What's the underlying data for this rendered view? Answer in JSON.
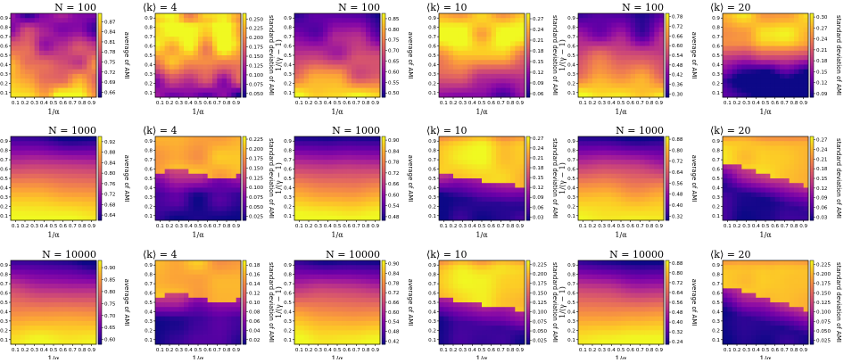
{
  "chart_data": {
    "type": "heatmap",
    "description_grid": "Rows of panels correspond to network size N; columns to mean degree <k>. Each pair shows the average of AMI (left) and the standard deviation of AMI (right) over a 9x9 grid of (1/alpha, 1/(gamma-1)).",
    "axes": {
      "xlabel": "1/α",
      "ylabel": "1/(γ − 1)",
      "xticks": [
        "0.1",
        "0.2",
        "0.3",
        "0.4",
        "0.5",
        "0.6",
        "0.7",
        "0.8",
        "0.9"
      ],
      "yticks": [
        "0.1",
        "0.2",
        "0.3",
        "0.4",
        "0.5",
        "0.6",
        "0.7",
        "0.8",
        "0.9"
      ],
      "xlim": [
        0.05,
        0.95
      ],
      "ylim": [
        0.05,
        0.95
      ],
      "colormap": "plasma"
    },
    "panels": [
      {
        "N_title": "N = 100",
        "k_title": "⟨k⟩ = 4",
        "avg_label": "average of AMI",
        "std_label": "standard deviation of AMI",
        "avg_ticks": [
          "0.87",
          "0.84",
          "0.81",
          "0.78",
          "0.75",
          "0.72",
          "0.69",
          "0.66"
        ],
        "avg_range": [
          0.645,
          0.895
        ],
        "std_ticks": [
          "0.250",
          "0.225",
          "0.200",
          "0.175",
          "0.150",
          "0.125",
          "0.100",
          "0.075",
          "0.050"
        ],
        "std_range": [
          0.04,
          0.265
        ],
        "avg_style": "noisy_small",
        "std_style": "noisy_small"
      },
      {
        "N_title": "N = 100",
        "k_title": "⟨k⟩ = 10",
        "avg_label": "average of AMI",
        "std_label": "standard deviation of AMI",
        "avg_ticks": [
          "0.85",
          "0.80",
          "0.75",
          "0.70",
          "0.65",
          "0.60",
          "0.55",
          "0.50"
        ],
        "avg_range": [
          0.48,
          0.875
        ],
        "std_ticks": [
          "0.27",
          "0.24",
          "0.21",
          "0.18",
          "0.15",
          "0.12",
          "0.09",
          "0.06"
        ],
        "std_range": [
          0.05,
          0.285
        ],
        "avg_style": "noisy_mid",
        "std_style": "noisy_mid"
      },
      {
        "N_title": "N = 100",
        "k_title": "⟨k⟩ = 20",
        "avg_label": "average of AMI",
        "std_label": "standard deviation of AMI",
        "avg_ticks": [
          "0.78",
          "0.72",
          "0.66",
          "0.60",
          "0.54",
          "0.48",
          "0.42",
          "0.36",
          "0.30"
        ],
        "avg_range": [
          0.28,
          0.8
        ],
        "std_ticks": [
          "0.30",
          "0.27",
          "0.24",
          "0.21",
          "0.18",
          "0.15",
          "0.12",
          "0.09"
        ],
        "std_range": [
          0.08,
          0.31
        ],
        "avg_style": "noisy_mid",
        "std_style": "noisy_large"
      },
      {
        "N_title": "N = 1000",
        "k_title": "⟨k⟩ = 4",
        "avg_label": "average of AMI",
        "std_label": "standard deviation of AMI",
        "avg_ticks": [
          "0.92",
          "0.88",
          "0.84",
          "0.80",
          "0.76",
          "0.72",
          "0.68",
          "0.64"
        ],
        "avg_range": [
          0.62,
          0.94
        ],
        "std_ticks": [
          "0.225",
          "0.200",
          "0.175",
          "0.150",
          "0.125",
          "0.100",
          "0.075",
          "0.050",
          "0.025"
        ],
        "std_range": [
          0.015,
          0.232
        ],
        "avg_style": "smooth",
        "std_style": "smooth_high"
      },
      {
        "N_title": "N = 1000",
        "k_title": "⟨k⟩ = 10",
        "avg_label": "average of AMI",
        "std_label": "standard deviation of AMI",
        "avg_ticks": [
          "0.90",
          "0.84",
          "0.78",
          "0.72",
          "0.66",
          "0.60",
          "0.54",
          "0.48"
        ],
        "avg_range": [
          0.46,
          0.92
        ],
        "std_ticks": [
          "0.27",
          "0.24",
          "0.21",
          "0.18",
          "0.15",
          "0.12",
          "0.09",
          "0.06",
          "0.03"
        ],
        "std_range": [
          0.02,
          0.275
        ],
        "avg_style": "smooth",
        "std_style": "smooth_mid"
      },
      {
        "N_title": "N = 1000",
        "k_title": "⟨k⟩ = 20",
        "avg_label": "average of AMI",
        "std_label": "standard deviation of AMI",
        "avg_ticks": [
          "0.88",
          "0.80",
          "0.72",
          "0.64",
          "0.56",
          "0.48",
          "0.40",
          "0.32"
        ],
        "avg_range": [
          0.29,
          0.9
        ],
        "std_ticks": [
          "0.27",
          "0.24",
          "0.21",
          "0.18",
          "0.15",
          "0.12",
          "0.09",
          "0.06",
          "0.03"
        ],
        "std_range": [
          0.02,
          0.28
        ],
        "avg_style": "smooth",
        "std_style": "smooth_low"
      },
      {
        "N_title": "N = 10000",
        "k_title": "⟨k⟩ = 4",
        "avg_label": "average of AMI",
        "std_label": "standard deviation of AMI",
        "avg_ticks": [
          "0.90",
          "0.85",
          "0.80",
          "0.75",
          "0.70",
          "0.65",
          "0.60"
        ],
        "avg_range": [
          0.58,
          0.93
        ],
        "std_ticks": [
          "0.18",
          "0.16",
          "0.14",
          "0.12",
          "0.10",
          "0.08",
          "0.06",
          "0.04",
          "0.02"
        ],
        "std_range": [
          0.01,
          0.19
        ],
        "avg_style": "smooth",
        "std_style": "smooth_high"
      },
      {
        "N_title": "N = 10000",
        "k_title": "⟨k⟩ = 10",
        "avg_label": "average of AMI",
        "std_label": "standard deviation of AMI",
        "avg_ticks": [
          "0.90",
          "0.84",
          "0.78",
          "0.72",
          "0.66",
          "0.60",
          "0.54",
          "0.48",
          "0.42"
        ],
        "avg_range": [
          0.4,
          0.92
        ],
        "std_ticks": [
          "0.225",
          "0.200",
          "0.175",
          "0.150",
          "0.125",
          "0.100",
          "0.075",
          "0.050",
          "0.025"
        ],
        "std_range": [
          0.015,
          0.235
        ],
        "avg_style": "smooth",
        "std_style": "smooth_mid"
      },
      {
        "N_title": "N = 10000",
        "k_title": "⟨k⟩ = 20",
        "avg_label": "average of AMI",
        "std_label": "standard deviation of AMI",
        "avg_ticks": [
          "0.88",
          "0.80",
          "0.72",
          "0.64",
          "0.56",
          "0.48",
          "0.40",
          "0.32",
          "0.24"
        ],
        "avg_range": [
          0.22,
          0.9
        ],
        "std_ticks": [
          "0.225",
          "0.200",
          "0.175",
          "0.150",
          "0.125",
          "0.100",
          "0.075",
          "0.050",
          "0.025"
        ],
        "std_range": [
          0.015,
          0.235
        ],
        "avg_style": "smooth",
        "std_style": "smooth_low"
      }
    ]
  }
}
